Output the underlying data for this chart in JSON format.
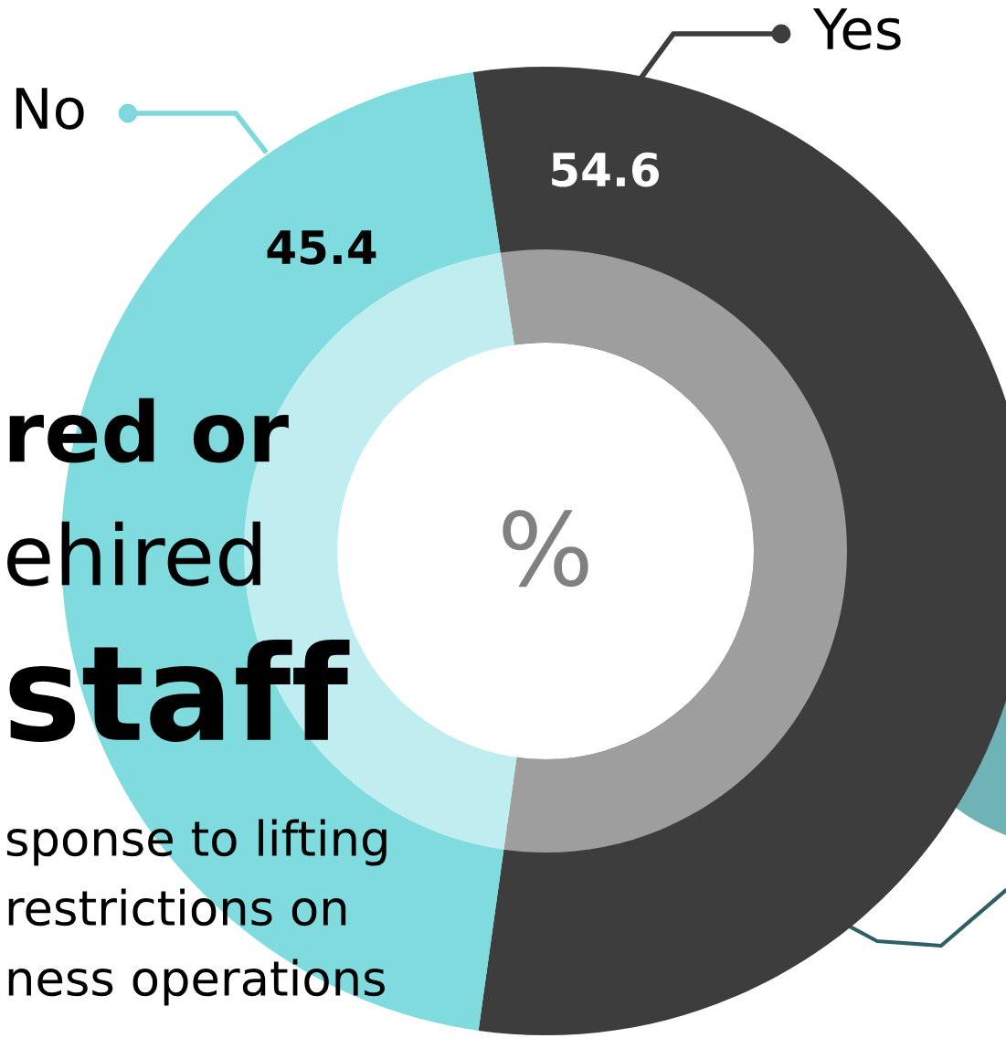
{
  "chart_data": {
    "type": "donut",
    "categories": [
      "Yes",
      "No"
    ],
    "values": [
      54.6,
      45.4
    ],
    "colors": [
      "#3d3d3d",
      "#80dbde"
    ],
    "data_labels": true,
    "annotations": [
      "%",
      "red or",
      "ehired",
      "staff",
      "sponse to lifting",
      "restrictions on",
      "ness operations"
    ]
  }
}
